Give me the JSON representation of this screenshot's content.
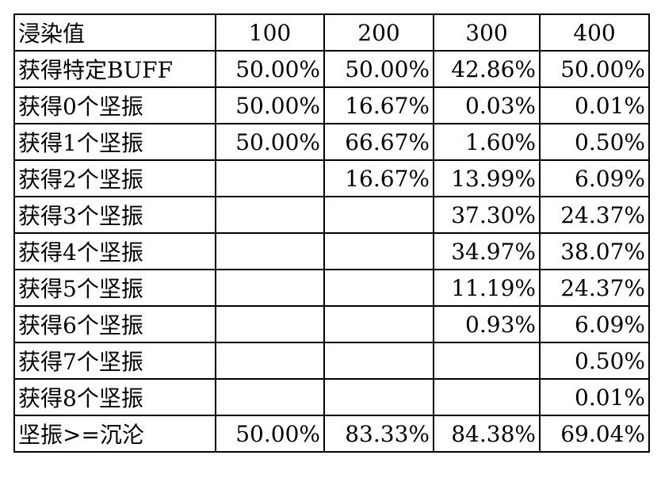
{
  "table": {
    "header": [
      "浸染值",
      "100",
      "200",
      "300",
      "400"
    ],
    "rows": [
      [
        "获得特定BUFF",
        "50.00%",
        "50.00%",
        "42.86%",
        "50.00%"
      ],
      [
        "获得0个坚振",
        "50.00%",
        "16.67%",
        "0.03%",
        "0.01%"
      ],
      [
        "获得1个坚振",
        "50.00%",
        "66.67%",
        "1.60%",
        "0.50%"
      ],
      [
        "获得2个坚振",
        null,
        "16.67%",
        "13.99%",
        "6.09%"
      ],
      [
        "获得3个坚振",
        null,
        null,
        "37.30%",
        "24.37%"
      ],
      [
        "获得4个坚振",
        null,
        null,
        "34.97%",
        "38.07%"
      ],
      [
        "获得5个坚振",
        null,
        null,
        "11.19%",
        "24.37%"
      ],
      [
        "获得6个坚振",
        null,
        null,
        "0.93%",
        "6.09%"
      ],
      [
        "获得7个坚振",
        null,
        null,
        null,
        "0.50%"
      ],
      [
        "获得8个坚振",
        null,
        null,
        null,
        "0.01%"
      ],
      [
        "坚振>=沉沦",
        "50.00%",
        "83.33%",
        "84.38%",
        "69.04%"
      ]
    ]
  }
}
